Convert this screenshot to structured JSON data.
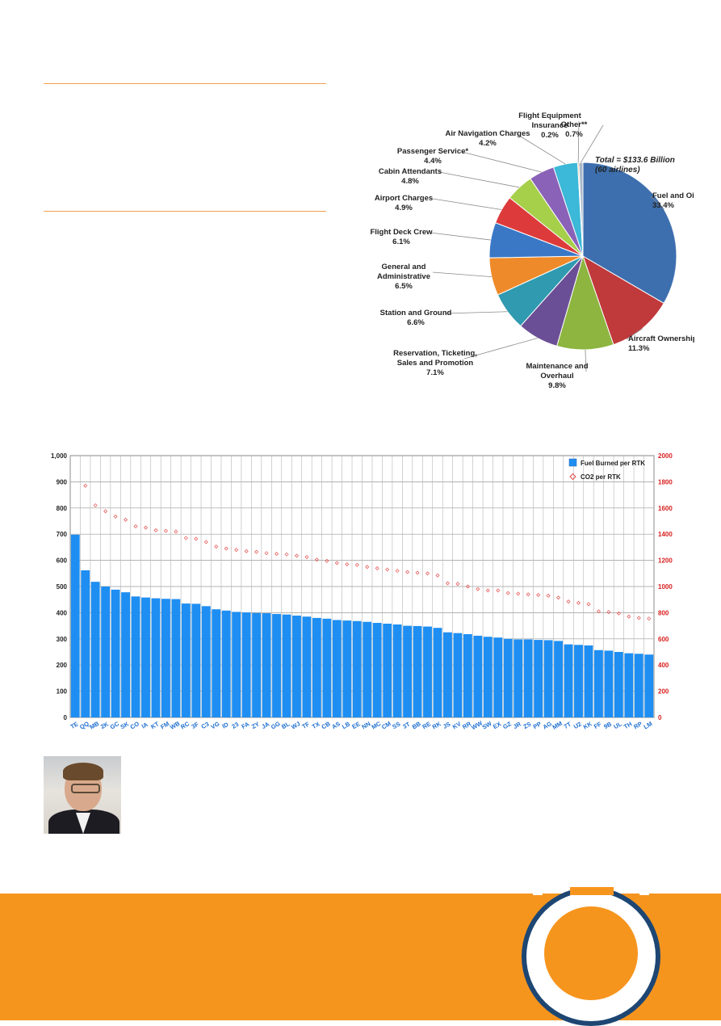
{
  "pie": {
    "total_line1": "Total = $133.6 Billion",
    "total_line2": "(60 airlines)",
    "chart_data": {
      "type": "pie",
      "title": "",
      "slices": [
        {
          "label": [
            "Fuel and Oil"
          ],
          "pct_text": "33.4%",
          "value": 33.4,
          "color": "#3d6fae"
        },
        {
          "label": [
            "Aircraft Ownership"
          ],
          "pct_text": "11.3%",
          "value": 11.3,
          "color": "#c0393b"
        },
        {
          "label": [
            "Maintenance and",
            "Overhaul"
          ],
          "pct_text": "9.8%",
          "value": 9.8,
          "color": "#8db53f"
        },
        {
          "label": [
            "Reservation, Ticketing,",
            "Sales and Promotion"
          ],
          "pct_text": "7.1%",
          "value": 7.1,
          "color": "#6b4f96"
        },
        {
          "label": [
            "Station and Ground"
          ],
          "pct_text": "6.6%",
          "value": 6.6,
          "color": "#2f9ab0"
        },
        {
          "label": [
            "General and",
            "Administrative"
          ],
          "pct_text": "6.5%",
          "value": 6.5,
          "color": "#ef8a2a"
        },
        {
          "label": [
            "Flight Deck Crew"
          ],
          "pct_text": "6.1%",
          "value": 6.1,
          "color": "#3a78c6"
        },
        {
          "label": [
            "Airport Charges"
          ],
          "pct_text": "4.9%",
          "value": 4.9,
          "color": "#dd3b3b"
        },
        {
          "label": [
            "Cabin Attendants"
          ],
          "pct_text": "4.8%",
          "value": 4.8,
          "color": "#a6cf4a"
        },
        {
          "label": [
            "Passenger Service*"
          ],
          "pct_text": "4.4%",
          "value": 4.4,
          "color": "#8a62b8"
        },
        {
          "label": [
            "Air Navigation Charges"
          ],
          "pct_text": "4.2%",
          "value": 4.2,
          "color": "#3cb8d8"
        },
        {
          "label": [
            "Flight Equipment",
            "Insurance"
          ],
          "pct_text": "0.2%",
          "value": 0.2,
          "color": "#f28c28"
        },
        {
          "label": [
            "Other**"
          ],
          "pct_text": "0.7%",
          "value": 0.7,
          "color": "#a9b7c9"
        }
      ]
    }
  },
  "bars": {
    "chart_data": {
      "type": "bar",
      "title": "",
      "categories": [
        "TE",
        "QQ",
        "MB",
        "2K",
        "GC",
        "SK",
        "CO",
        "IA",
        "KT",
        "FM",
        "WB",
        "RC",
        "3F",
        "C3",
        "VG",
        "ID",
        "23",
        "FA",
        "ZY",
        "JA",
        "GG",
        "BL",
        "WJ",
        "TF",
        "TX",
        "CB",
        "AS",
        "LB",
        "EE",
        "NN",
        "MC",
        "CM",
        "SS",
        "3T",
        "BB",
        "RE",
        "RK",
        "JS",
        "KV",
        "RR",
        "WW",
        "SW",
        "EX",
        "GZ",
        "JR",
        "ZS",
        "PP",
        "AG",
        "MM",
        "7T",
        "U2",
        "KK",
        "FF",
        "9B",
        "UL",
        "TH",
        "RP",
        "LM"
      ],
      "series": [
        {
          "name": "Fuel Burned per RTK",
          "axis": "left",
          "kind": "bar",
          "color": "#1e8ef2",
          "values": [
            698,
            562,
            518,
            500,
            488,
            478,
            462,
            458,
            455,
            453,
            452,
            435,
            434,
            425,
            413,
            408,
            403,
            401,
            399,
            398,
            395,
            393,
            389,
            385,
            380,
            377,
            372,
            370,
            368,
            365,
            361,
            358,
            355,
            350,
            349,
            347,
            342,
            325,
            322,
            318,
            312,
            308,
            305,
            300,
            298,
            298,
            296,
            295,
            292,
            279,
            277,
            275,
            257,
            255,
            250,
            245,
            243,
            240
          ]
        },
        {
          "name": "CO2 per RTK",
          "axis": "right",
          "kind": "scatter",
          "color": "#e34a4a",
          "values": [
            null,
            1770,
            1620,
            1575,
            1535,
            1510,
            1460,
            1450,
            1430,
            1425,
            1420,
            1370,
            1365,
            1340,
            1305,
            1290,
            1280,
            1270,
            1265,
            1255,
            1250,
            1245,
            1235,
            1225,
            1205,
            1195,
            1180,
            1170,
            1165,
            1150,
            1140,
            1130,
            1120,
            1110,
            1105,
            1100,
            1085,
            1025,
            1020,
            1000,
            980,
            970,
            970,
            950,
            945,
            940,
            935,
            930,
            915,
            885,
            875,
            865,
            810,
            805,
            795,
            770,
            760,
            755
          ]
        }
      ],
      "y_left": {
        "min": 0,
        "max": 1000,
        "ticks": [
          "0",
          "100",
          "200",
          "300",
          "400",
          "500",
          "600",
          "700",
          "800",
          "900",
          "1,000"
        ]
      },
      "y_right": {
        "min": 0,
        "max": 2000,
        "ticks": [
          "0",
          "200",
          "400",
          "600",
          "800",
          "1000",
          "1200",
          "1400",
          "1600",
          "1800",
          "2000"
        ]
      },
      "legend": "top-right",
      "grid": true
    }
  }
}
